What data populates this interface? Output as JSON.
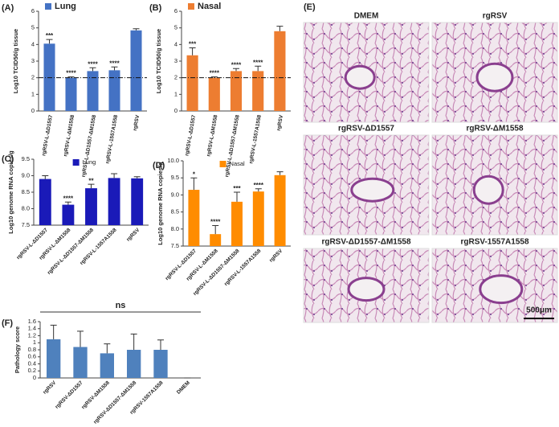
{
  "chart_data": [
    {
      "type": "bar",
      "panel": "(A)",
      "legend": "Lung",
      "color": "#4472c4",
      "ylabel": "Log10 TCID50/g tissue",
      "categories": [
        "rgRSV-L-ΔD1557",
        "rgRSV-L-ΔM1558",
        "rgRSV-L-ΔD1557-ΔM1558",
        "rgRSV-L-1557A1558",
        "rgRSV"
      ],
      "values": [
        4.05,
        2.0,
        2.4,
        2.45,
        4.85
      ],
      "errors": [
        0.25,
        0.05,
        0.2,
        0.2,
        0.1
      ],
      "annotations": [
        "***",
        "****",
        "****",
        "****",
        null
      ],
      "reference_line": 2,
      "ylim": [
        0,
        6
      ],
      "yticks": [
        0,
        1,
        2,
        3,
        4,
        5,
        6
      ]
    },
    {
      "type": "bar",
      "panel": "(B)",
      "legend": "Nasal",
      "color": "#ed7d31",
      "ylabel": "Log10 TCID50/g tissue",
      "categories": [
        "rgRSV-L-ΔD1557",
        "rgRSV-L-ΔM1558",
        "rgRSV-L-ΔD1557-ΔM1558",
        "rgRSV-L-1557A1558",
        "rgRSV"
      ],
      "values": [
        3.35,
        2.0,
        2.4,
        2.4,
        4.8
      ],
      "errors": [
        0.45,
        0.05,
        0.15,
        0.3,
        0.3
      ],
      "annotations": [
        "***",
        "****",
        "****",
        "****",
        null
      ],
      "reference_line": 2,
      "ylim": [
        0,
        6
      ],
      "yticks": [
        0,
        1,
        2,
        3,
        4,
        5,
        6
      ]
    },
    {
      "type": "bar",
      "panel": "(C)",
      "legend": "Lung",
      "color": "#1a1ab8",
      "ylabel": "Log10 genome RNA copies/g",
      "categories": [
        "rgRSV-L-ΔD1557",
        "rgRSV-L-ΔM1558",
        "rgRSV-L-ΔD1557-ΔM1558",
        "rgRSV-L-1557A1558",
        "rgRSV"
      ],
      "values": [
        8.9,
        8.12,
        8.62,
        8.93,
        8.92
      ],
      "errors": [
        0.1,
        0.08,
        0.12,
        0.13,
        0.05
      ],
      "annotations": [
        null,
        "****",
        "**",
        null,
        null
      ],
      "ylim": [
        7.5,
        9.5
      ],
      "yticks": [
        {
          "value": 7.5,
          "label": "7.5"
        },
        {
          "value": 8,
          "label": "8.0"
        },
        {
          "value": 8.5,
          "label": "8.5"
        },
        {
          "value": 9,
          "label": "9.0"
        },
        {
          "value": 9.5,
          "label": "9.5"
        }
      ]
    },
    {
      "type": "bar",
      "panel": "(D)",
      "legend": "Nasal",
      "color": "#ff8c00",
      "ylabel": "Log10 genome RNA copies/g",
      "categories": [
        "rgRSV-L-ΔD1557",
        "rgRSV-L-ΔM1558",
        "rgRSV-L-ΔD1557-ΔM1558",
        "rgRSV-L-1557A1558",
        "rgRSV"
      ],
      "values": [
        9.15,
        7.85,
        8.8,
        9.1,
        9.58
      ],
      "errors": [
        0.35,
        0.25,
        0.28,
        0.08,
        0.1
      ],
      "annotations": [
        "*",
        "****",
        "***",
        "****",
        null
      ],
      "ylim": [
        7.5,
        10
      ],
      "yticks": [
        {
          "value": 7.5,
          "label": "7.5"
        },
        {
          "value": 8,
          "label": "8.0"
        },
        {
          "value": 8.5,
          "label": "8.5"
        },
        {
          "value": 9,
          "label": "9.0"
        },
        {
          "value": 9.5,
          "label": "9.5"
        },
        {
          "value": 10,
          "label": "10.0"
        }
      ]
    },
    {
      "type": "bar",
      "panel": "(F)",
      "color": "#4f81bd",
      "ylabel": "Pathology score",
      "group_annotation": "ns",
      "categories": [
        "rgRSV",
        "rgRSV-ΔD1557",
        "rgRSV-ΔM1558",
        "rgRSV-ΔD1557-ΔM1558",
        "rgRSV-1557A1558",
        "DMEM"
      ],
      "values": [
        1.1,
        0.88,
        0.7,
        0.8,
        0.8,
        0
      ],
      "errors": [
        0.4,
        0.45,
        0.27,
        0.45,
        0.28,
        0
      ],
      "ylim": [
        0,
        1.6
      ],
      "yticks": [
        0,
        0.2,
        0.4,
        0.6,
        0.8,
        1,
        1.2,
        1.4,
        1.6
      ]
    }
  ],
  "histology": {
    "panel": "(E)",
    "images": [
      "DMEM",
      "rgRSV",
      "rgRSV-ΔD1557",
      "rgRSV-ΔM1558",
      "rgRSV-ΔD1557-ΔM1558",
      "rgRSV-1557A1558"
    ],
    "scale_bar": "500μm"
  }
}
